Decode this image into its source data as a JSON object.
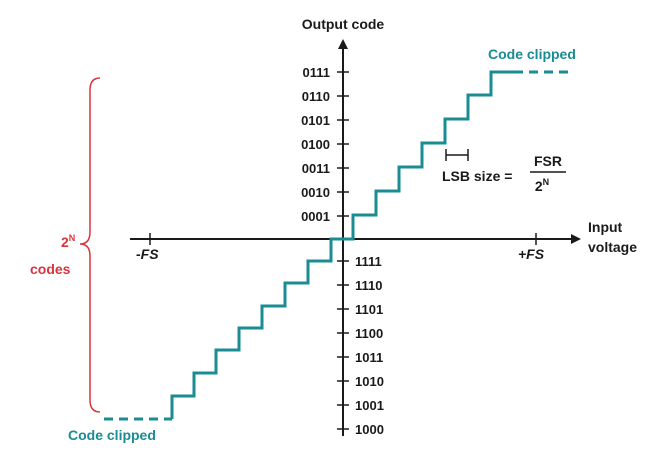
{
  "colors": {
    "axis": "#1a1a1a",
    "staircase": "#1a8c93",
    "brace": "#d8343c"
  },
  "axes": {
    "y_title": "Output code",
    "x_title_line1": "Input",
    "x_title_line2": "voltage",
    "neg_fs": "-FS",
    "pos_fs": "+FS"
  },
  "codes_positive": [
    "0111",
    "0110",
    "0101",
    "0100",
    "0011",
    "0010",
    "0001"
  ],
  "codes_negative": [
    "1111",
    "1110",
    "1101",
    "1100",
    "1011",
    "1010",
    "1001",
    "1000"
  ],
  "clip_top": "Code clipped",
  "clip_bottom": "Code clipped",
  "lsb": {
    "label": "LSB size =",
    "numerator": "FSR",
    "denominator_base": "2",
    "denominator_exp": "N"
  },
  "brace_label": {
    "base": "2",
    "exp": "N",
    "word": "codes"
  }
}
